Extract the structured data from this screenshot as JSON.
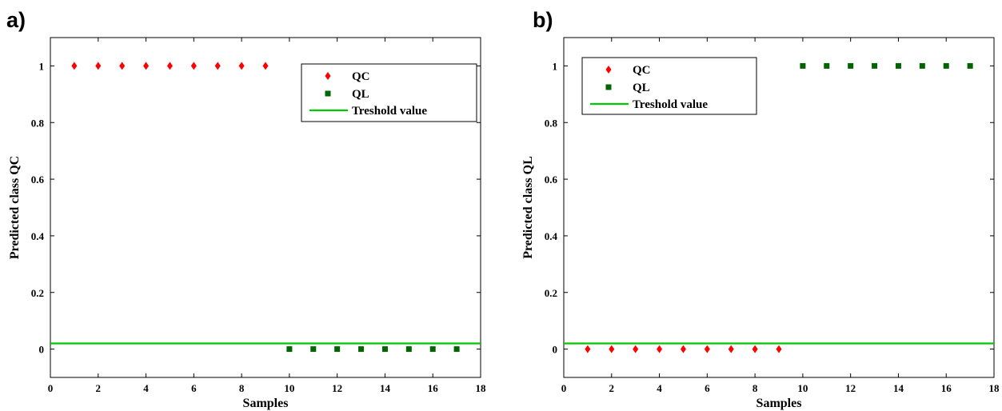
{
  "colors": {
    "qc": "#ff0000",
    "ql": "#006400",
    "threshold": "#00c800"
  },
  "chart_data": [
    {
      "type": "scatter",
      "panel_label": "a)",
      "xlabel": "Samples",
      "ylabel": "Predicted class QC",
      "xlim": [
        0,
        18
      ],
      "ylim": [
        -0.1,
        1.1
      ],
      "x_ticks": [
        0,
        2,
        4,
        6,
        8,
        10,
        12,
        14,
        16,
        18
      ],
      "y_ticks": [
        0,
        0.2,
        0.4,
        0.6,
        0.8,
        1
      ],
      "x_tick_labels": [
        "0",
        "2",
        "4",
        "6",
        "8",
        "10",
        "12",
        "14",
        "16",
        "18"
      ],
      "y_tick_labels": [
        "0",
        "0.2",
        "0.4",
        "0.6",
        "0.8",
        "1"
      ],
      "legend_position": "top-right",
      "grid": false,
      "threshold": {
        "name": "Treshold value",
        "y": 0.02
      },
      "series": [
        {
          "name": "QC",
          "marker": "diamond",
          "color": "#ff0000",
          "x": [
            1,
            2,
            3,
            4,
            5,
            6,
            7,
            8,
            9
          ],
          "y": [
            1,
            1,
            1,
            1,
            1,
            1,
            1,
            1,
            1
          ]
        },
        {
          "name": "QL",
          "marker": "square",
          "color": "#006400",
          "x": [
            10,
            11,
            12,
            13,
            14,
            15,
            16,
            17
          ],
          "y": [
            0,
            0,
            0,
            0,
            0,
            0,
            0,
            0
          ]
        }
      ]
    },
    {
      "type": "scatter",
      "panel_label": "b)",
      "xlabel": "Samples",
      "ylabel": "Predicted class QL",
      "xlim": [
        0,
        18
      ],
      "ylim": [
        -0.1,
        1.1
      ],
      "x_ticks": [
        0,
        2,
        4,
        6,
        8,
        10,
        12,
        14,
        16,
        18
      ],
      "y_ticks": [
        0,
        0.2,
        0.4,
        0.6,
        0.8,
        1
      ],
      "x_tick_labels": [
        "0",
        "2",
        "4",
        "6",
        "8",
        "10",
        "12",
        "14",
        "16",
        "18"
      ],
      "y_tick_labels": [
        "0",
        "0.2",
        "0.4",
        "0.6",
        "0.8",
        "1"
      ],
      "legend_position": "top-left",
      "grid": false,
      "threshold": {
        "name": "Treshold value",
        "y": 0.02
      },
      "series": [
        {
          "name": "QC",
          "marker": "diamond",
          "color": "#ff0000",
          "x": [
            1,
            2,
            3,
            4,
            5,
            6,
            7,
            8,
            9
          ],
          "y": [
            0,
            0,
            0,
            0,
            0,
            0,
            0,
            0,
            0
          ]
        },
        {
          "name": "QL",
          "marker": "square",
          "color": "#006400",
          "x": [
            10,
            11,
            12,
            13,
            14,
            15,
            16,
            17
          ],
          "y": [
            1,
            1,
            1,
            1,
            1,
            1,
            1,
            1
          ]
        }
      ]
    }
  ]
}
